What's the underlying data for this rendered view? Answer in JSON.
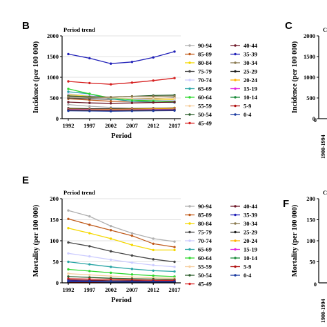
{
  "panels": [
    {
      "letter": "B",
      "title": "Period trend"
    },
    {
      "letter": "C",
      "title": "C"
    },
    {
      "letter": "E",
      "title": "Period trend"
    },
    {
      "letter": "F",
      "title": "C"
    }
  ],
  "fragments": {
    "tick_zero_c": "0",
    "tick_zero_f": "0",
    "year_c": "1900-1994",
    "year_f": "1900-1994"
  },
  "chart_data": [
    {
      "type": "line",
      "title": "Period trend",
      "xlabel": "Period",
      "ylabel": "Incidence (per 100 000)",
      "ylim": [
        0,
        2000
      ],
      "yticks": [
        0,
        500,
        1000,
        1500,
        2000
      ],
      "x": [
        1992,
        1997,
        2002,
        2007,
        2012,
        2017
      ],
      "grid": "horizontal",
      "legend": "right, two columns",
      "series": [
        {
          "name": "90-94",
          "color": "#b0b0b0",
          "values": [
            340,
            300,
            270,
            255,
            250,
            245
          ]
        },
        {
          "name": "85-89",
          "color": "#c05a1a",
          "values": [
            480,
            450,
            420,
            420,
            430,
            430
          ]
        },
        {
          "name": "80-84",
          "color": "#f5d800",
          "values": [
            580,
            550,
            500,
            480,
            470,
            460
          ]
        },
        {
          "name": "75-79",
          "color": "#444444",
          "values": [
            500,
            480,
            470,
            480,
            490,
            500
          ]
        },
        {
          "name": "70-74",
          "color": "#ccccff",
          "values": [
            600,
            560,
            500,
            470,
            450,
            440
          ]
        },
        {
          "name": "65-69",
          "color": "#2aa6a6",
          "values": [
            650,
            600,
            480,
            420,
            400,
            390
          ]
        },
        {
          "name": "60-64",
          "color": "#2ed82e",
          "values": [
            720,
            600,
            500,
            450,
            430,
            410
          ]
        },
        {
          "name": "55-59",
          "color": "#f6cfa0",
          "values": [
            560,
            530,
            500,
            490,
            500,
            490
          ]
        },
        {
          "name": "50-54",
          "color": "#2d5f2d",
          "values": [
            550,
            530,
            520,
            540,
            560,
            570
          ]
        },
        {
          "name": "45-49",
          "color": "#d62020",
          "values": [
            900,
            860,
            830,
            870,
            920,
            980
          ]
        },
        {
          "name": "40-44",
          "color": "#6e1a2a",
          "values": [
            400,
            380,
            370,
            380,
            390,
            400
          ]
        },
        {
          "name": "35-39",
          "color": "#2020b8",
          "values": [
            1560,
            1460,
            1330,
            1370,
            1480,
            1620
          ]
        },
        {
          "name": "30-34",
          "color": "#8a7a50",
          "values": [
            530,
            510,
            520,
            540,
            540,
            545
          ]
        },
        {
          "name": "25-29",
          "color": "#1a1a1a",
          "values": [
            250,
            240,
            240,
            240,
            250,
            260
          ]
        },
        {
          "name": "20-24",
          "color": "#ffb000",
          "values": [
            230,
            225,
            225,
            230,
            240,
            250
          ]
        },
        {
          "name": "15-19",
          "color": "#e020e0",
          "values": [
            220,
            215,
            210,
            215,
            220,
            225
          ]
        },
        {
          "name": "10-14",
          "color": "#1a8a3a",
          "values": [
            210,
            205,
            200,
            205,
            210,
            215
          ]
        },
        {
          "name": "5-9",
          "color": "#b01010",
          "values": [
            200,
            195,
            190,
            195,
            200,
            205
          ]
        },
        {
          "name": "0-4",
          "color": "#1a3aa0",
          "values": [
            190,
            185,
            180,
            185,
            190,
            195
          ]
        }
      ]
    },
    {
      "type": "line",
      "title": "Period trend",
      "xlabel": "Period",
      "ylabel": "Mortality (per 100 000)",
      "ylim": [
        0,
        200
      ],
      "yticks": [
        0,
        50,
        100,
        150,
        200
      ],
      "x": [
        1992,
        1997,
        2002,
        2007,
        2012,
        2017
      ],
      "grid": "horizontal",
      "legend": "right, two columns",
      "series": [
        {
          "name": "90-94",
          "color": "#b0b0b0",
          "values": [
            172,
            158,
            135,
            118,
            105,
            98
          ]
        },
        {
          "name": "85-89",
          "color": "#c05a1a",
          "values": [
            152,
            138,
            125,
            112,
            93,
            85
          ]
        },
        {
          "name": "80-84",
          "color": "#f5d800",
          "values": [
            130,
            118,
            105,
            90,
            78,
            78
          ]
        },
        {
          "name": "75-79",
          "color": "#444444",
          "values": [
            96,
            87,
            75,
            65,
            56,
            50
          ]
        },
        {
          "name": "70-74",
          "color": "#ccccff",
          "values": [
            70,
            63,
            55,
            48,
            42,
            38
          ]
        },
        {
          "name": "65-69",
          "color": "#2aa6a6",
          "values": [
            50,
            44,
            38,
            33,
            29,
            27
          ]
        },
        {
          "name": "60-64",
          "color": "#2ed82e",
          "values": [
            32,
            28,
            24,
            20,
            17,
            15
          ]
        },
        {
          "name": "55-59",
          "color": "#f6cfa0",
          "values": [
            22,
            19,
            16,
            14,
            12,
            11
          ]
        },
        {
          "name": "50-54",
          "color": "#2d5f2d",
          "values": [
            15,
            13,
            11,
            10,
            9,
            8
          ]
        },
        {
          "name": "45-49",
          "color": "#d62020",
          "values": [
            10,
            9,
            8,
            7,
            6,
            6
          ]
        },
        {
          "name": "40-44",
          "color": "#6e1a2a",
          "values": [
            7,
            6,
            5,
            5,
            4,
            4
          ]
        },
        {
          "name": "35-39",
          "color": "#2020b8",
          "values": [
            5,
            4,
            4,
            3,
            3,
            3
          ]
        },
        {
          "name": "30-34",
          "color": "#8a7a50",
          "values": [
            3,
            3,
            3,
            2,
            2,
            2
          ]
        },
        {
          "name": "25-29",
          "color": "#1a1a1a",
          "values": [
            2,
            2,
            2,
            2,
            2,
            2
          ]
        },
        {
          "name": "20-24",
          "color": "#ffb000",
          "values": [
            2,
            2,
            1,
            1,
            1,
            1
          ]
        },
        {
          "name": "15-19",
          "color": "#e020e0",
          "values": [
            1,
            1,
            1,
            1,
            1,
            1
          ]
        },
        {
          "name": "10-14",
          "color": "#1a8a3a",
          "values": [
            1,
            1,
            1,
            1,
            1,
            1
          ]
        },
        {
          "name": "5-9",
          "color": "#b01010",
          "values": [
            1,
            1,
            1,
            1,
            1,
            1
          ]
        },
        {
          "name": "0-4",
          "color": "#1a3aa0",
          "values": [
            3,
            3,
            2,
            2,
            2,
            2
          ]
        }
      ]
    },
    {
      "type": "line",
      "title": "",
      "xlabel": "",
      "ylabel": "Incidence (per 100 000)",
      "ylim": [
        0,
        2000
      ],
      "yticks": [
        0,
        500,
        1000,
        1500,
        2000
      ],
      "note": "partially visible panel C"
    },
    {
      "type": "line",
      "title": "",
      "xlabel": "",
      "ylabel": "Mortality (per 100 000)",
      "ylim": [
        0,
        200
      ],
      "yticks": [
        50,
        100,
        150,
        200
      ],
      "note": "partially visible panel F"
    }
  ]
}
